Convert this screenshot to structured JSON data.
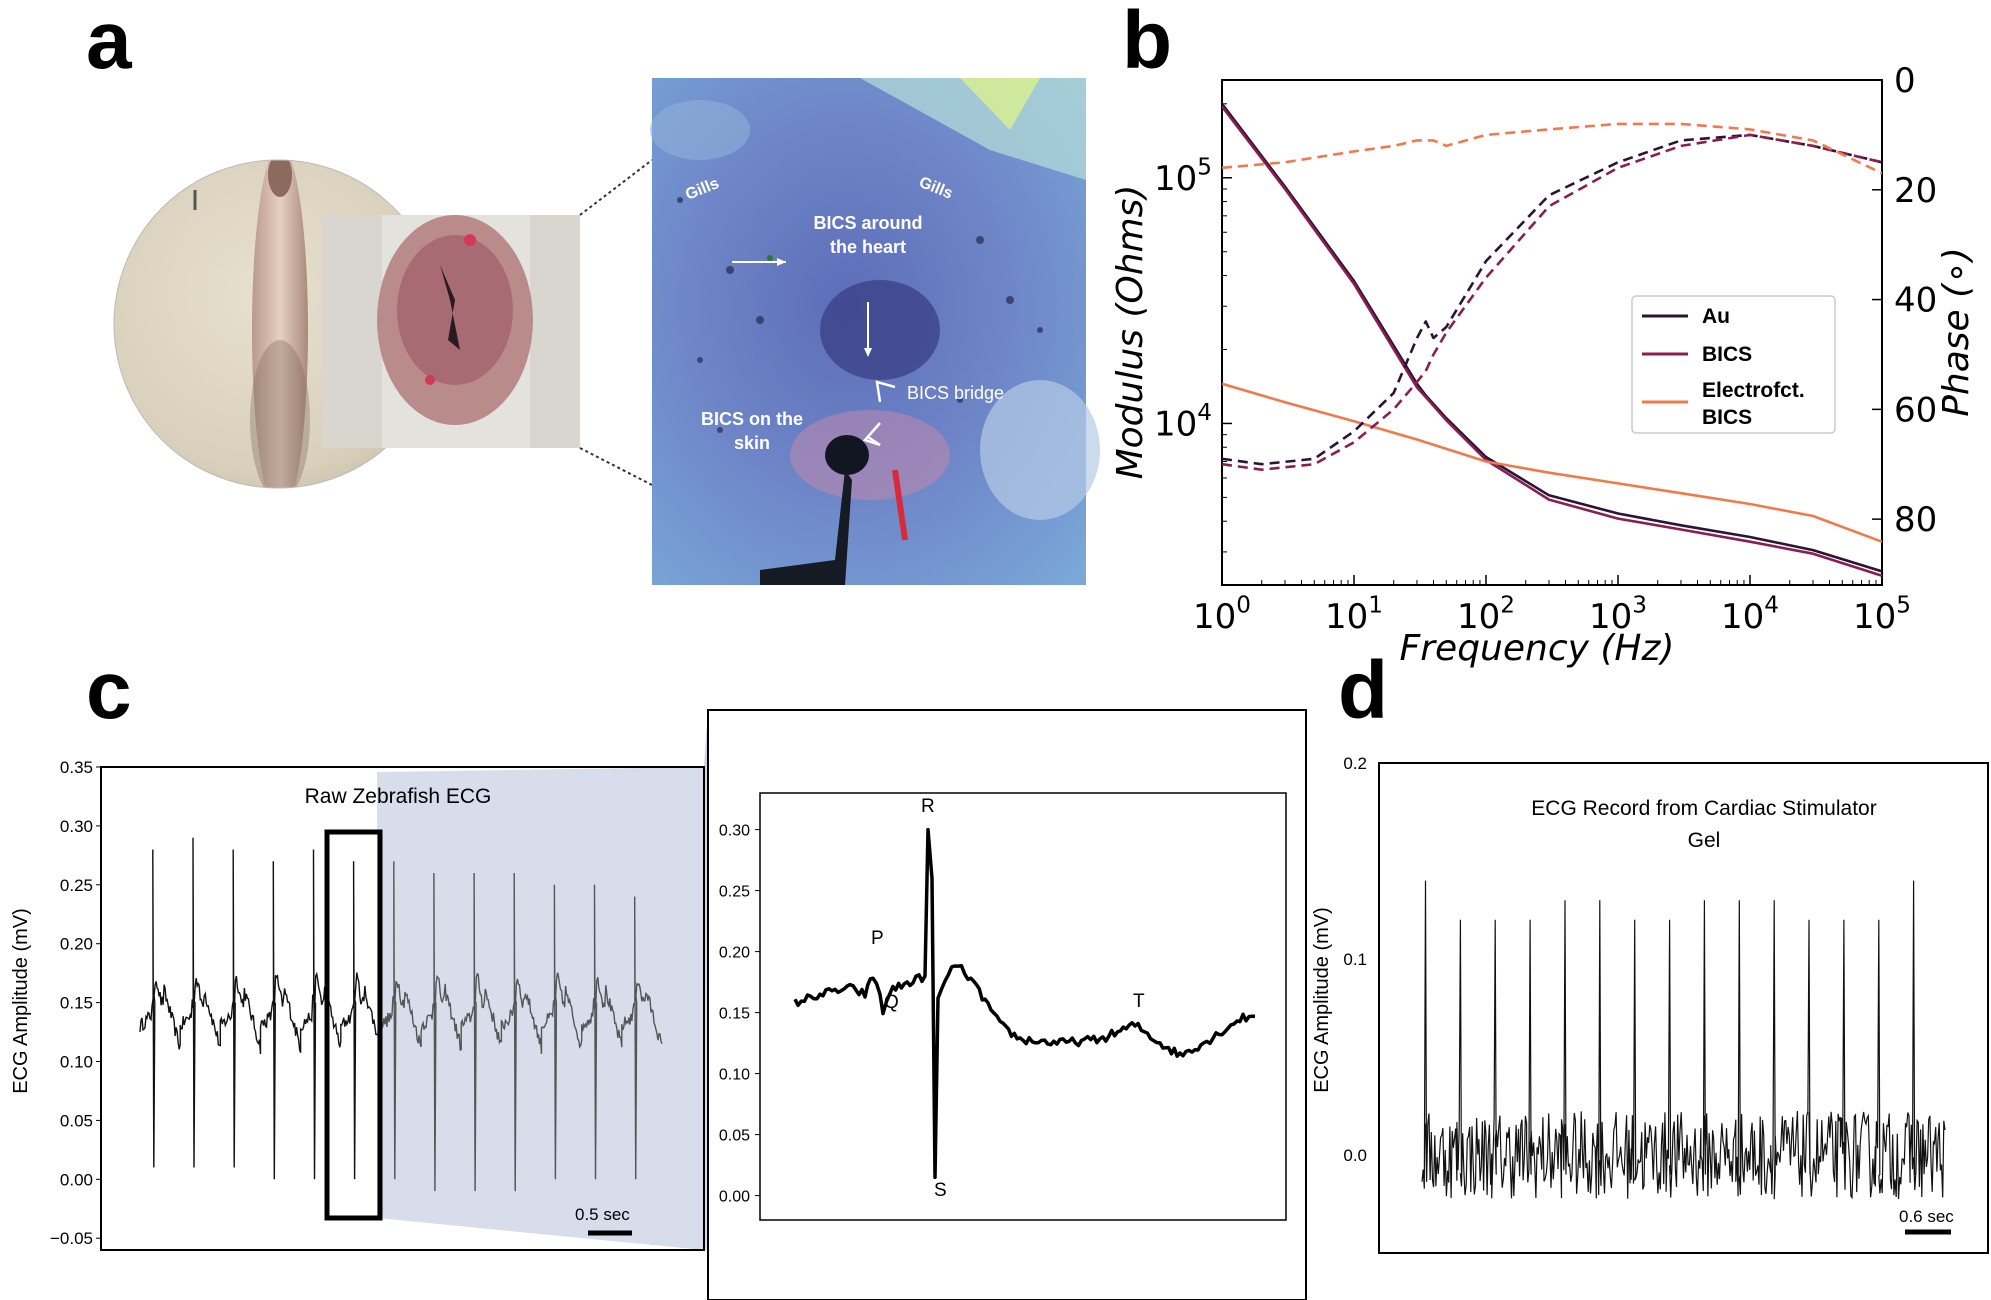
{
  "panels": {
    "a": "a",
    "b": "b",
    "c": "c",
    "d": "d"
  },
  "panel_a": {
    "annotations": [
      "Gills",
      "Gills",
      "BICS around the heart",
      "BICS bridge",
      "BICS on the skin"
    ]
  },
  "colors": {
    "au": "#2b1437",
    "bics": "#8a1f4f",
    "electro": "#ef7a4b",
    "zoom_fill": "#c9d2e3"
  },
  "chart_data": [
    {
      "id": "b",
      "type": "line",
      "xlabel": "Frequency (Hz)",
      "ylabel": "Modulus (Ohms)",
      "y2label": "Phase (∘)",
      "xscale": "log",
      "yscale": "log",
      "xlim": [
        1,
        100000
      ],
      "ylim": [
        2200,
        250000
      ],
      "y2lim": [
        0,
        92
      ],
      "x_ticks": [
        {
          "base": "10",
          "exp": "0"
        },
        {
          "base": "10",
          "exp": "1"
        },
        {
          "base": "10",
          "exp": "2"
        },
        {
          "base": "10",
          "exp": "3"
        },
        {
          "base": "10",
          "exp": "4"
        },
        {
          "base": "10",
          "exp": "5"
        }
      ],
      "y_ticks": [
        {
          "base": "10",
          "exp": "5"
        },
        {
          "base": "10",
          "exp": "4"
        }
      ],
      "y2_ticks": [
        "0",
        "20",
        "40",
        "60",
        "80"
      ],
      "legend": [
        "Au",
        "BICS",
        "Electrofct.\nBICS"
      ],
      "legend_position": "center-right",
      "series": [
        {
          "name": "Au",
          "kind": "modulus",
          "x": [
            1,
            3,
            10,
            30,
            35,
            50,
            100,
            300,
            1000,
            3000,
            10000,
            30000,
            100000
          ],
          "y": [
            200000,
            92000,
            38000,
            14500,
            13000,
            10500,
            7300,
            5100,
            4300,
            3850,
            3450,
            3050,
            2500
          ]
        },
        {
          "name": "BICS",
          "kind": "modulus",
          "x": [
            1,
            3,
            10,
            30,
            35,
            50,
            100,
            300,
            1000,
            3000,
            10000,
            30000,
            100000
          ],
          "y": [
            195000,
            90000,
            37000,
            14000,
            12800,
            10300,
            7100,
            4900,
            4100,
            3700,
            3300,
            2950,
            2400
          ]
        },
        {
          "name": "Electrofct. BICS",
          "kind": "modulus",
          "x": [
            1,
            3,
            10,
            30,
            100,
            300,
            1000,
            3000,
            10000,
            30000,
            100000
          ],
          "y": [
            14500,
            12200,
            10200,
            8600,
            7000,
            6300,
            5700,
            5200,
            4700,
            4200,
            3300
          ]
        },
        {
          "name": "Au",
          "kind": "phase",
          "x": [
            1,
            2,
            5,
            10,
            20,
            30,
            35,
            40,
            50,
            100,
            300,
            1000,
            3000,
            10000,
            30000,
            100000
          ],
          "y": [
            69,
            70,
            69,
            64,
            57,
            47,
            44,
            47,
            45,
            33,
            21,
            15,
            11,
            10,
            12,
            15
          ]
        },
        {
          "name": "BICS",
          "kind": "phase",
          "x": [
            1,
            2,
            5,
            10,
            20,
            30,
            35,
            40,
            50,
            100,
            300,
            1000,
            3000,
            10000,
            30000,
            100000
          ],
          "y": [
            70,
            71,
            70,
            66,
            60,
            55,
            53,
            50,
            46,
            36,
            23,
            16,
            12,
            10,
            12,
            15
          ]
        },
        {
          "name": "Electrofct. BICS",
          "kind": "phase",
          "x": [
            1,
            3,
            10,
            20,
            30,
            40,
            50,
            100,
            300,
            1000,
            3000,
            10000,
            30000,
            100000
          ],
          "y": [
            16,
            15,
            13,
            12,
            11,
            11,
            12,
            10,
            9,
            8,
            8,
            9,
            11,
            17
          ]
        }
      ]
    },
    {
      "id": "c-main",
      "type": "line",
      "title": "Raw Zebrafish ECG",
      "ylabel": "ECG Amplitude (mV)",
      "xlabel": "",
      "ylim": [
        -0.06,
        0.35
      ],
      "y_ticks": [
        "0.35",
        "0.30",
        "0.25",
        "0.20",
        "0.15",
        "0.10",
        "0.05",
        "0.00",
        "−0.05"
      ],
      "scale_bar": "0.5 sec",
      "beats": 13,
      "baseline_mV": 0.14,
      "spike_peaks_mV": [
        0.28,
        0.29,
        0.28,
        0.27,
        0.28,
        0.27,
        0.27,
        0.26,
        0.26,
        0.26,
        0.25,
        0.25,
        0.24
      ],
      "spike_troughs_mV": [
        0.01,
        0.01,
        0.01,
        0.0,
        0.0,
        0.0,
        0.0,
        -0.01,
        -0.01,
        -0.01,
        0.0,
        0.0,
        0.0
      ]
    },
    {
      "id": "c-zoom",
      "type": "line",
      "ylim": [
        -0.02,
        0.33
      ],
      "y_ticks": [
        "0.30",
        "0.25",
        "0.20",
        "0.15",
        "0.10",
        "0.05",
        "0.00"
      ],
      "wave_labels": [
        "P",
        "Q",
        "R",
        "S",
        "T"
      ],
      "wave_values": {
        "P": 0.18,
        "Q": 0.15,
        "R": 0.3,
        "S": 0.015,
        "T": 0.14
      }
    },
    {
      "id": "d",
      "type": "line",
      "title": "ECG Record from Cardiac Stimulator\nGel",
      "ylabel": "ECG Amplitude (mV)",
      "ylim": [
        -0.05,
        0.2
      ],
      "y_ticks": [
        "0.2",
        "0.1",
        "0.0"
      ],
      "scale_bar": "0.6 sec",
      "beats": 15,
      "spike_peaks_mV": [
        0.14,
        0.12,
        0.12,
        0.12,
        0.13,
        0.13,
        0.12,
        0.12,
        0.13,
        0.13,
        0.13,
        0.12,
        0.12,
        0.12,
        0.14
      ]
    }
  ]
}
